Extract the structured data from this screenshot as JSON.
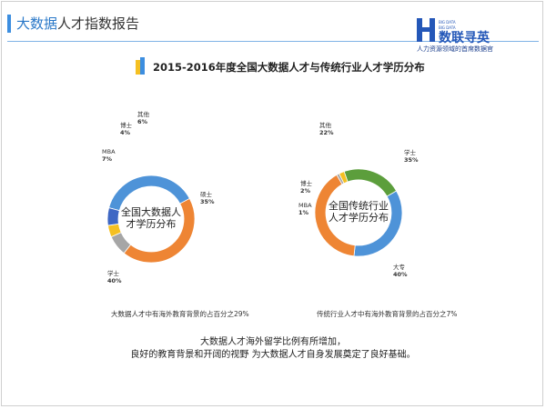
{
  "header": {
    "title_part1": "大数据",
    "title_part2": "人才指数报告",
    "logo_small_1": "BIG DATA",
    "logo_small_2": "BIG DATA",
    "logo_text": "数联寻英",
    "slogan": "人力资源领域的首席数据官"
  },
  "main_title": "2015-2016年度全国大数据人才与传统行业人才学历分布",
  "chart_data": [
    {
      "type": "pie",
      "variant": "donut",
      "center_label": [
        "全国大数据人",
        "才学历分布"
      ],
      "slices": [
        {
          "name": "硕士",
          "value": 35,
          "label": "35%",
          "color": "#4e93d8"
        },
        {
          "name": "学士",
          "value": 40,
          "label": "40%",
          "color": "#ee8534"
        },
        {
          "name": "MBA",
          "value": 7,
          "label": "7%",
          "color": "#a6a6a6"
        },
        {
          "name": "博士",
          "value": 4,
          "label": "4%",
          "color": "#f5c022"
        },
        {
          "name": "其他",
          "value": 6,
          "label": "6%",
          "color": "#3e67c4"
        }
      ],
      "note": "大数据人才中有海外教育背景的占百分之29%"
    },
    {
      "type": "pie",
      "variant": "donut",
      "center_label": [
        "全国传统行业",
        "人才学历分布"
      ],
      "slices": [
        {
          "name": "学士",
          "value": 35,
          "label": "35%",
          "color": "#4e93d8"
        },
        {
          "name": "大专",
          "value": 40,
          "label": "40%",
          "color": "#ee8534"
        },
        {
          "name": "MBA",
          "value": 1,
          "label": "1%",
          "color": "#a6a6a6"
        },
        {
          "name": "博士",
          "value": 2,
          "label": "2%",
          "color": "#f5c022"
        },
        {
          "name": "其他",
          "value": 22,
          "label": "22%",
          "color": "#5c9e3c"
        }
      ],
      "note": "传统行业人才中有海外教育背景的占百分之7%"
    }
  ],
  "summary": {
    "line1": "大数据人才海外留学比例有所增加，",
    "line2": "良好的教育背景和开阔的视野 为大数据人才自身发展奠定了良好基础。"
  }
}
